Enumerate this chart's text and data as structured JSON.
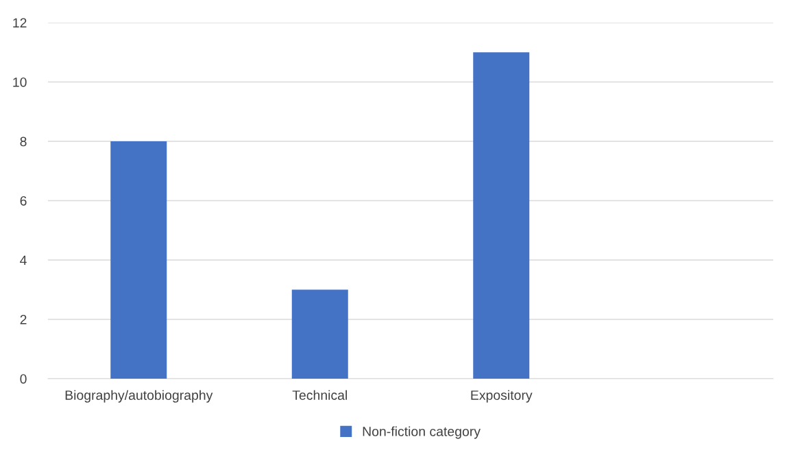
{
  "chart_data": {
    "type": "bar",
    "categories": [
      "Biography/autobiography",
      "Technical",
      "Expository",
      null
    ],
    "series": [
      {
        "name": "Non-fiction category",
        "color": "#4472c4",
        "values": [
          8,
          3,
          11,
          null
        ]
      }
    ],
    "ylim": [
      0,
      12
    ],
    "yticks": [
      0,
      2,
      4,
      6,
      8,
      10,
      12
    ],
    "grid": "y",
    "legend": "bottom"
  }
}
